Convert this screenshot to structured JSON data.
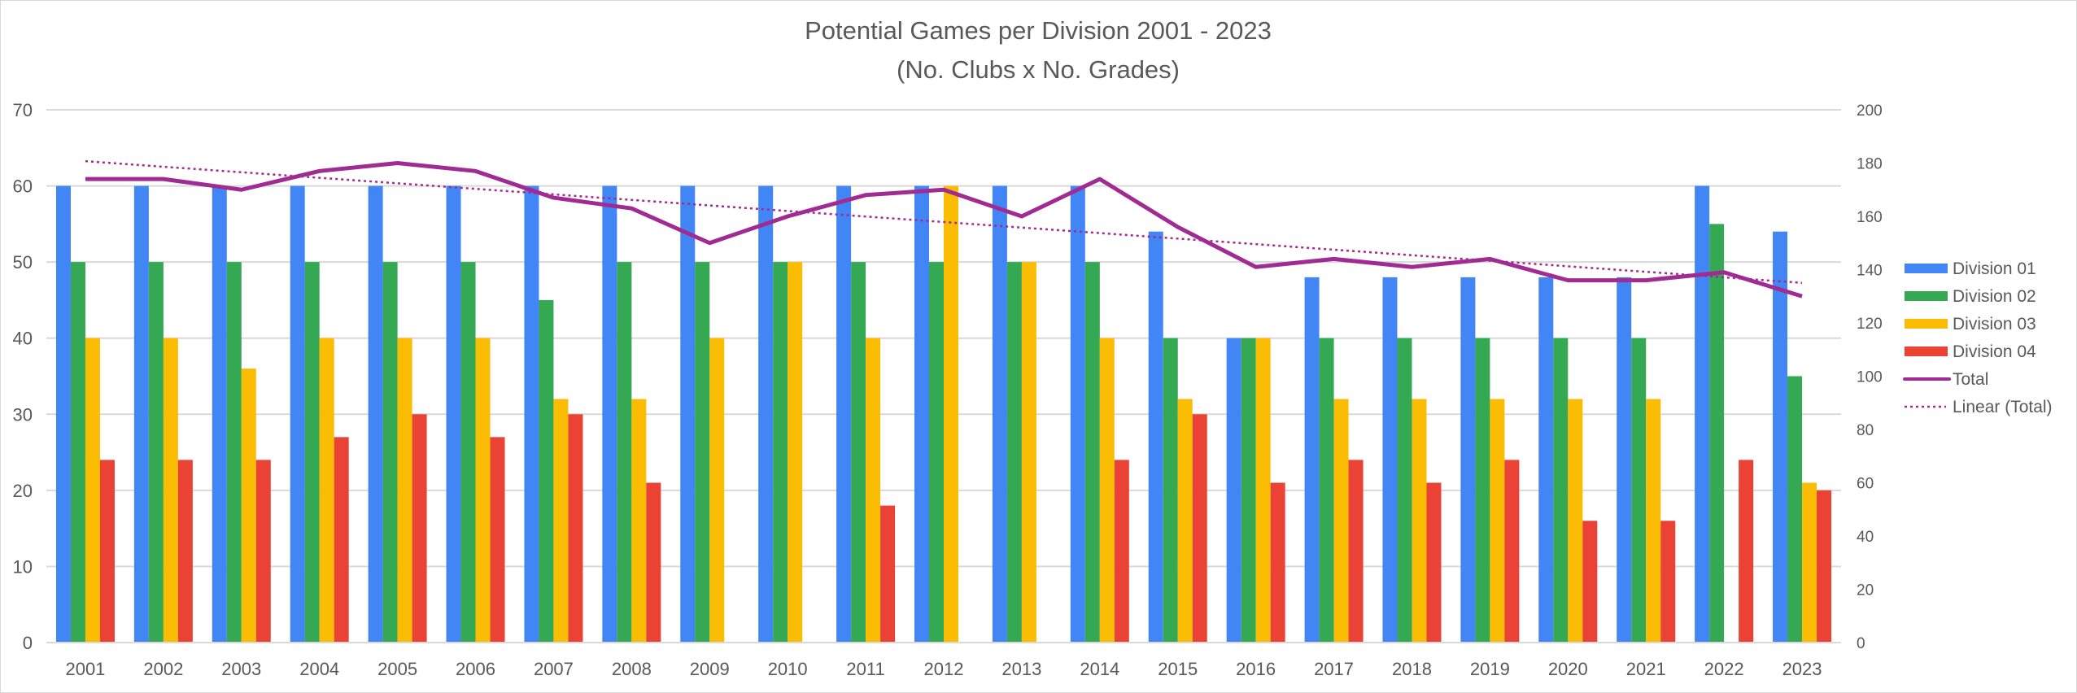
{
  "chart_data": {
    "type": "bar",
    "title": "Potential Games per Division 2001 - 2023",
    "subtitle": "(No. Clubs x No. Grades)",
    "categories": [
      "2001",
      "2002",
      "2003",
      "2004",
      "2005",
      "2006",
      "2007",
      "2008",
      "2009",
      "2010",
      "2011",
      "2012",
      "2013",
      "2014",
      "2015",
      "2016",
      "2017",
      "2018",
      "2019",
      "2020",
      "2021",
      "2022",
      "2023"
    ],
    "series": [
      {
        "name": "Division 01",
        "color": "#4285F4",
        "axis": "left",
        "values": [
          60,
          60,
          60,
          60,
          60,
          60,
          60,
          60,
          60,
          60,
          60,
          60,
          60,
          60,
          54,
          40,
          48,
          48,
          48,
          48,
          48,
          60,
          54
        ]
      },
      {
        "name": "Division 02",
        "color": "#34A853",
        "axis": "left",
        "values": [
          50,
          50,
          50,
          50,
          50,
          50,
          45,
          50,
          50,
          50,
          50,
          50,
          50,
          50,
          40,
          40,
          40,
          40,
          40,
          40,
          40,
          55,
          35
        ]
      },
      {
        "name": "Division 03",
        "color": "#FBBC04",
        "axis": "left",
        "values": [
          40,
          40,
          36,
          40,
          40,
          40,
          32,
          32,
          40,
          50,
          40,
          60,
          50,
          40,
          32,
          40,
          32,
          32,
          32,
          32,
          32,
          0,
          21
        ]
      },
      {
        "name": "Division 04",
        "color": "#EA4335",
        "axis": "left",
        "values": [
          24,
          24,
          24,
          27,
          30,
          27,
          30,
          21,
          0,
          0,
          18,
          0,
          0,
          24,
          30,
          21,
          24,
          21,
          24,
          16,
          16,
          24,
          20
        ]
      }
    ],
    "line_series": {
      "name": "Total",
      "color": "#A02B93",
      "axis": "right",
      "values": [
        174,
        174,
        170,
        177,
        180,
        177,
        167,
        163,
        150,
        160,
        168,
        170,
        160,
        174,
        156,
        141,
        144,
        141,
        144,
        136,
        136,
        139,
        130
      ]
    },
    "trendline": {
      "name": "Linear (Total)",
      "type": "linear",
      "of": "Total",
      "color": "#A02B93"
    },
    "ylim": [
      0,
      70
    ],
    "yticks": [
      0,
      10,
      20,
      30,
      40,
      50,
      60,
      70
    ],
    "y2lim": [
      0,
      200
    ],
    "y2ticks": [
      0,
      20,
      40,
      60,
      80,
      100,
      120,
      140,
      160,
      180,
      200
    ],
    "grid": true,
    "legend": "right"
  }
}
